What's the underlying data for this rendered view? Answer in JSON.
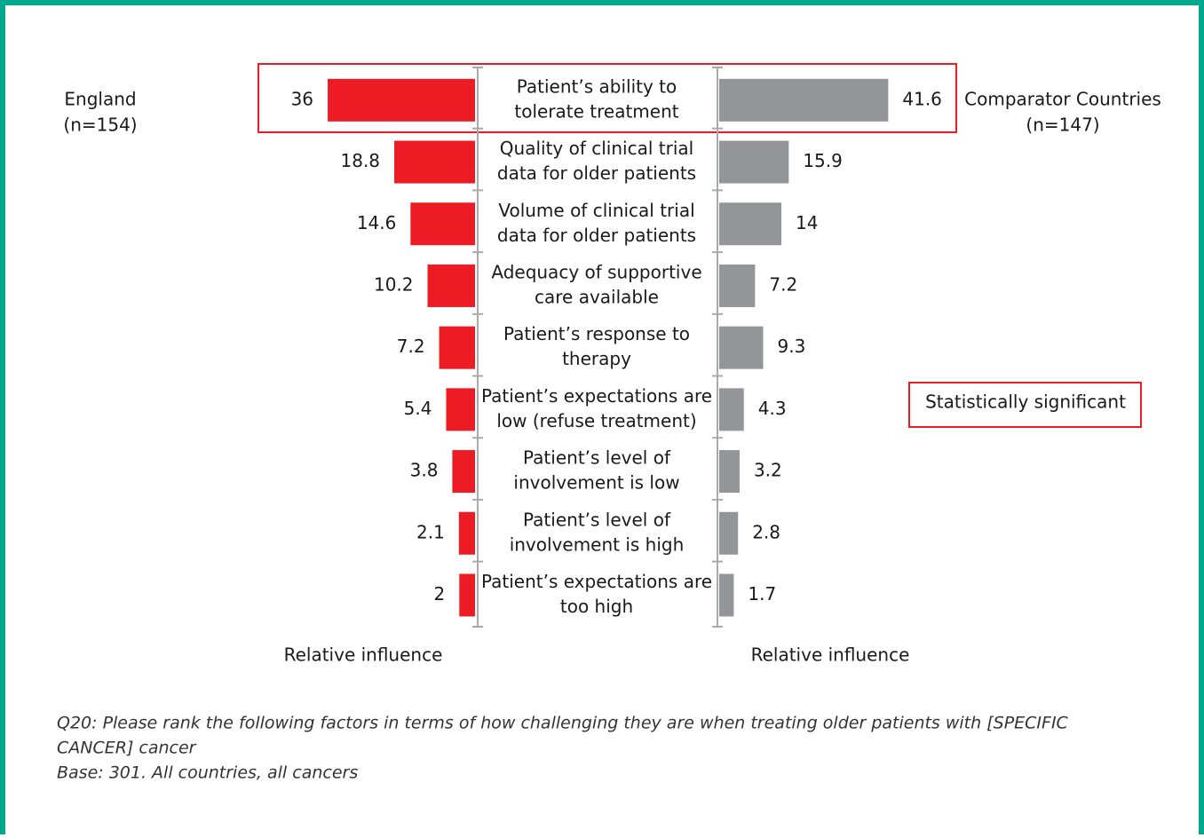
{
  "chart_data": {
    "type": "butterfly",
    "categories": [
      [
        "Patient’s ability to",
        "tolerate treatment"
      ],
      [
        "Quality of clinical trial",
        "data for older patients"
      ],
      [
        "Volume of clinical trial",
        "data for older patients"
      ],
      [
        "Adequacy of supportive",
        "care available"
      ],
      [
        "Patient’s response to",
        "therapy"
      ],
      [
        "Patient’s expectations are",
        "low (refuse treatment)"
      ],
      [
        "Patient’s level of",
        "involvement is low"
      ],
      [
        "Patient’s level of",
        "involvement is high"
      ],
      [
        "Patient’s expectations are",
        "too high"
      ]
    ],
    "series": [
      {
        "name": "England",
        "base": "(n=154)",
        "color": "#ed1c24",
        "side": "left",
        "axis_label": "Relative influence",
        "values": [
          36,
          18.8,
          14.6,
          10.2,
          7.2,
          5.4,
          3.8,
          2.1,
          2
        ]
      },
      {
        "name": "Comparator Countries",
        "base": "(n=147)",
        "color": "#939598",
        "side": "right",
        "axis_label": "Relative influence",
        "values": [
          41.6,
          15.9,
          14,
          7.2,
          9.3,
          4.3,
          3.2,
          2.8,
          1.7
        ]
      }
    ],
    "legend": "Statistically significant",
    "notes": [
      "Q20: Please rank the following factors in terms of how challenging they are when treating older patients with [SPECIFIC",
      "CANCER] cancer",
      "Base: 301. All countries, all cancers"
    ]
  }
}
